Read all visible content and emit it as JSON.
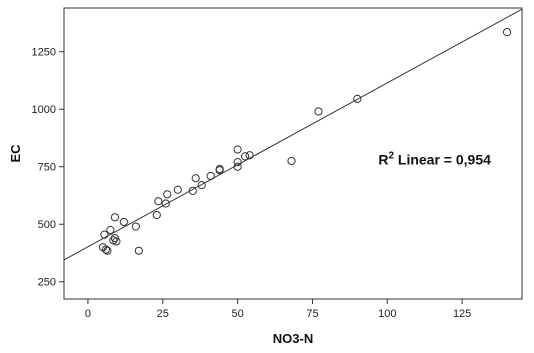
{
  "chart_data": {
    "type": "scatter",
    "xlabel": "NO3-N",
    "ylabel": "EC",
    "xlim": [
      -8,
      145
    ],
    "ylim": [
      175,
      1440
    ],
    "x_ticks": [
      0,
      25,
      50,
      75,
      100,
      125
    ],
    "y_ticks": [
      250,
      500,
      750,
      1000,
      1250
    ],
    "points": [
      {
        "x": 5,
        "y": 400
      },
      {
        "x": 5.5,
        "y": 455
      },
      {
        "x": 6,
        "y": 390
      },
      {
        "x": 6.5,
        "y": 385
      },
      {
        "x": 7.5,
        "y": 475
      },
      {
        "x": 8.5,
        "y": 430
      },
      {
        "x": 9,
        "y": 530
      },
      {
        "x": 9,
        "y": 440
      },
      {
        "x": 9.5,
        "y": 425
      },
      {
        "x": 12,
        "y": 510
      },
      {
        "x": 16,
        "y": 490
      },
      {
        "x": 17,
        "y": 385
      },
      {
        "x": 23,
        "y": 540
      },
      {
        "x": 23.5,
        "y": 600
      },
      {
        "x": 26,
        "y": 590
      },
      {
        "x": 26.5,
        "y": 630
      },
      {
        "x": 30,
        "y": 650
      },
      {
        "x": 35,
        "y": 645
      },
      {
        "x": 36,
        "y": 700
      },
      {
        "x": 38,
        "y": 670
      },
      {
        "x": 41,
        "y": 710
      },
      {
        "x": 44,
        "y": 735
      },
      {
        "x": 44,
        "y": 740
      },
      {
        "x": 50,
        "y": 750
      },
      {
        "x": 50,
        "y": 770
      },
      {
        "x": 50,
        "y": 825
      },
      {
        "x": 52.5,
        "y": 795
      },
      {
        "x": 54,
        "y": 800
      },
      {
        "x": 68,
        "y": 775
      },
      {
        "x": 77,
        "y": 990
      },
      {
        "x": 90,
        "y": 1045
      },
      {
        "x": 140,
        "y": 1335
      }
    ],
    "fit_line": {
      "x": [
        -8,
        145
      ],
      "y": [
        345,
        1435
      ]
    },
    "annotation": {
      "prefix": "R",
      "superscript": "2",
      "text": " Linear = 0,954",
      "x": 97,
      "y": 760
    },
    "grid": false,
    "colors": {
      "marker_stroke": "#333333",
      "line": "#333333",
      "frame": "#333333"
    }
  }
}
